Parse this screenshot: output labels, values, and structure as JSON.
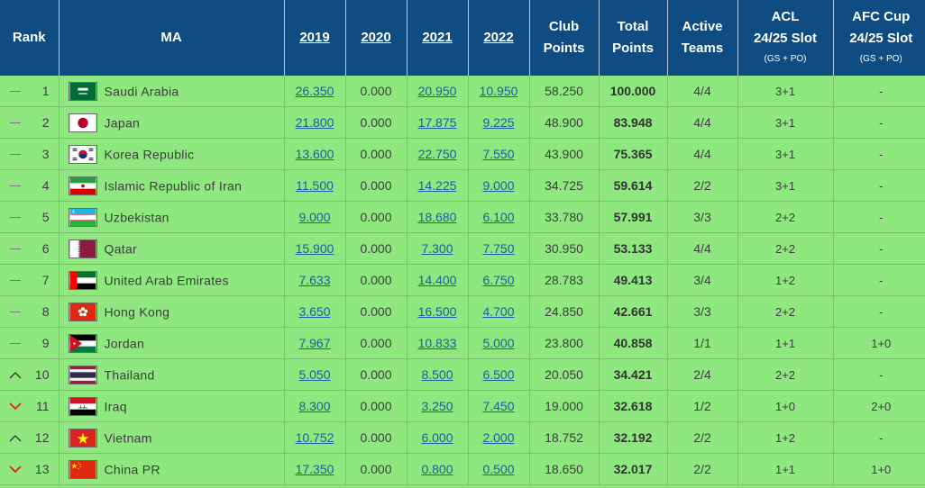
{
  "headers": {
    "rank": "Rank",
    "ma": "MA",
    "y2019": "2019",
    "y2020": "2020",
    "y2021": "2021",
    "y2022": "2022",
    "club_line1": "Club",
    "club_line2": "Points",
    "total_line1": "Total",
    "total_line2": "Points",
    "active_line1": "Active",
    "active_line2": "Teams",
    "acl_line1": "ACL",
    "acl_line2": "24/25 Slot",
    "acl_sub": "(GS + PO)",
    "afc_line1": "AFC Cup",
    "afc_line2": "24/25 Slot",
    "afc_sub": "(GS + PO)"
  },
  "colors": {
    "header_bg": "#0f4c81",
    "row_bg": "#8ee77f",
    "link": "#1a5fa3",
    "trend_up": "#333333",
    "trend_down": "#d62020",
    "trend_same": "#777777"
  },
  "rows": [
    {
      "trend": "same",
      "rank": "1",
      "flag": "saudi-arabia",
      "country": "Saudi Arabia",
      "y2019": "26.350",
      "y2020": "0.000",
      "y2021": "20.950",
      "y2022": "10.950",
      "club": "58.250",
      "total": "100.000",
      "active": "4/4",
      "acl": "3+1",
      "afc": "-"
    },
    {
      "trend": "same",
      "rank": "2",
      "flag": "japan",
      "country": "Japan",
      "y2019": "21.800",
      "y2020": "0.000",
      "y2021": "17.875",
      "y2022": "9.225",
      "club": "48.900",
      "total": "83.948",
      "active": "4/4",
      "acl": "3+1",
      "afc": "-"
    },
    {
      "trend": "same",
      "rank": "3",
      "flag": "korea-republic",
      "country": "Korea Republic",
      "y2019": "13.600",
      "y2020": "0.000",
      "y2021": "22.750",
      "y2022": "7.550",
      "club": "43.900",
      "total": "75.365",
      "active": "4/4",
      "acl": "3+1",
      "afc": "-"
    },
    {
      "trend": "same",
      "rank": "4",
      "flag": "iran",
      "country": "Islamic Republic of Iran",
      "y2019": "11.500",
      "y2020": "0.000",
      "y2021": "14.225",
      "y2022": "9.000",
      "club": "34.725",
      "total": "59.614",
      "active": "2/2",
      "acl": "3+1",
      "afc": "-"
    },
    {
      "trend": "same",
      "rank": "5",
      "flag": "uzbekistan",
      "country": "Uzbekistan",
      "y2019": "9.000",
      "y2020": "0.000",
      "y2021": "18.680",
      "y2022": "6.100",
      "club": "33.780",
      "total": "57.991",
      "active": "3/3",
      "acl": "2+2",
      "afc": "-"
    },
    {
      "trend": "same",
      "rank": "6",
      "flag": "qatar",
      "country": "Qatar",
      "y2019": "15.900",
      "y2020": "0.000",
      "y2021": "7.300",
      "y2022": "7.750",
      "club": "30.950",
      "total": "53.133",
      "active": "4/4",
      "acl": "2+2",
      "afc": "-"
    },
    {
      "trend": "same",
      "rank": "7",
      "flag": "united-arab-emirates",
      "country": "United Arab Emirates",
      "y2019": "7.633",
      "y2020": "0.000",
      "y2021": "14.400",
      "y2022": "6.750",
      "club": "28.783",
      "total": "49.413",
      "active": "3/4",
      "acl": "1+2",
      "afc": "-"
    },
    {
      "trend": "same",
      "rank": "8",
      "flag": "hong-kong",
      "country": "Hong Kong",
      "y2019": "3.650",
      "y2020": "0.000",
      "y2021": "16.500",
      "y2022": "4.700",
      "club": "24.850",
      "total": "42.661",
      "active": "3/3",
      "acl": "2+2",
      "afc": "-"
    },
    {
      "trend": "same",
      "rank": "9",
      "flag": "jordan",
      "country": "Jordan",
      "y2019": "7.967",
      "y2020": "0.000",
      "y2021": "10.833",
      "y2022": "5.000",
      "club": "23.800",
      "total": "40.858",
      "active": "1/1",
      "acl": "1+1",
      "afc": "1+0"
    },
    {
      "trend": "up",
      "rank": "10",
      "flag": "thailand",
      "country": "Thailand",
      "y2019": "5.050",
      "y2020": "0.000",
      "y2021": "8.500",
      "y2022": "6.500",
      "club": "20.050",
      "total": "34.421",
      "active": "2/4",
      "acl": "2+2",
      "afc": "-"
    },
    {
      "trend": "down",
      "rank": "11",
      "flag": "iraq",
      "country": "Iraq",
      "y2019": "8.300",
      "y2020": "0.000",
      "y2021": "3.250",
      "y2022": "7.450",
      "club": "19.000",
      "total": "32.618",
      "active": "1/2",
      "acl": "1+0",
      "afc": "2+0"
    },
    {
      "trend": "up",
      "rank": "12",
      "flag": "vietnam",
      "country": "Vietnam",
      "y2019": "10.752",
      "y2020": "0.000",
      "y2021": "6.000",
      "y2022": "2.000",
      "club": "18.752",
      "total": "32.192",
      "active": "2/2",
      "acl": "1+2",
      "afc": "-"
    },
    {
      "trend": "down",
      "rank": "13",
      "flag": "china-pr",
      "country": "China PR",
      "y2019": "17.350",
      "y2020": "0.000",
      "y2021": "0.800",
      "y2022": "0.500",
      "club": "18.650",
      "total": "32.017",
      "active": "2/2",
      "acl": "1+1",
      "afc": "1+0"
    }
  ]
}
